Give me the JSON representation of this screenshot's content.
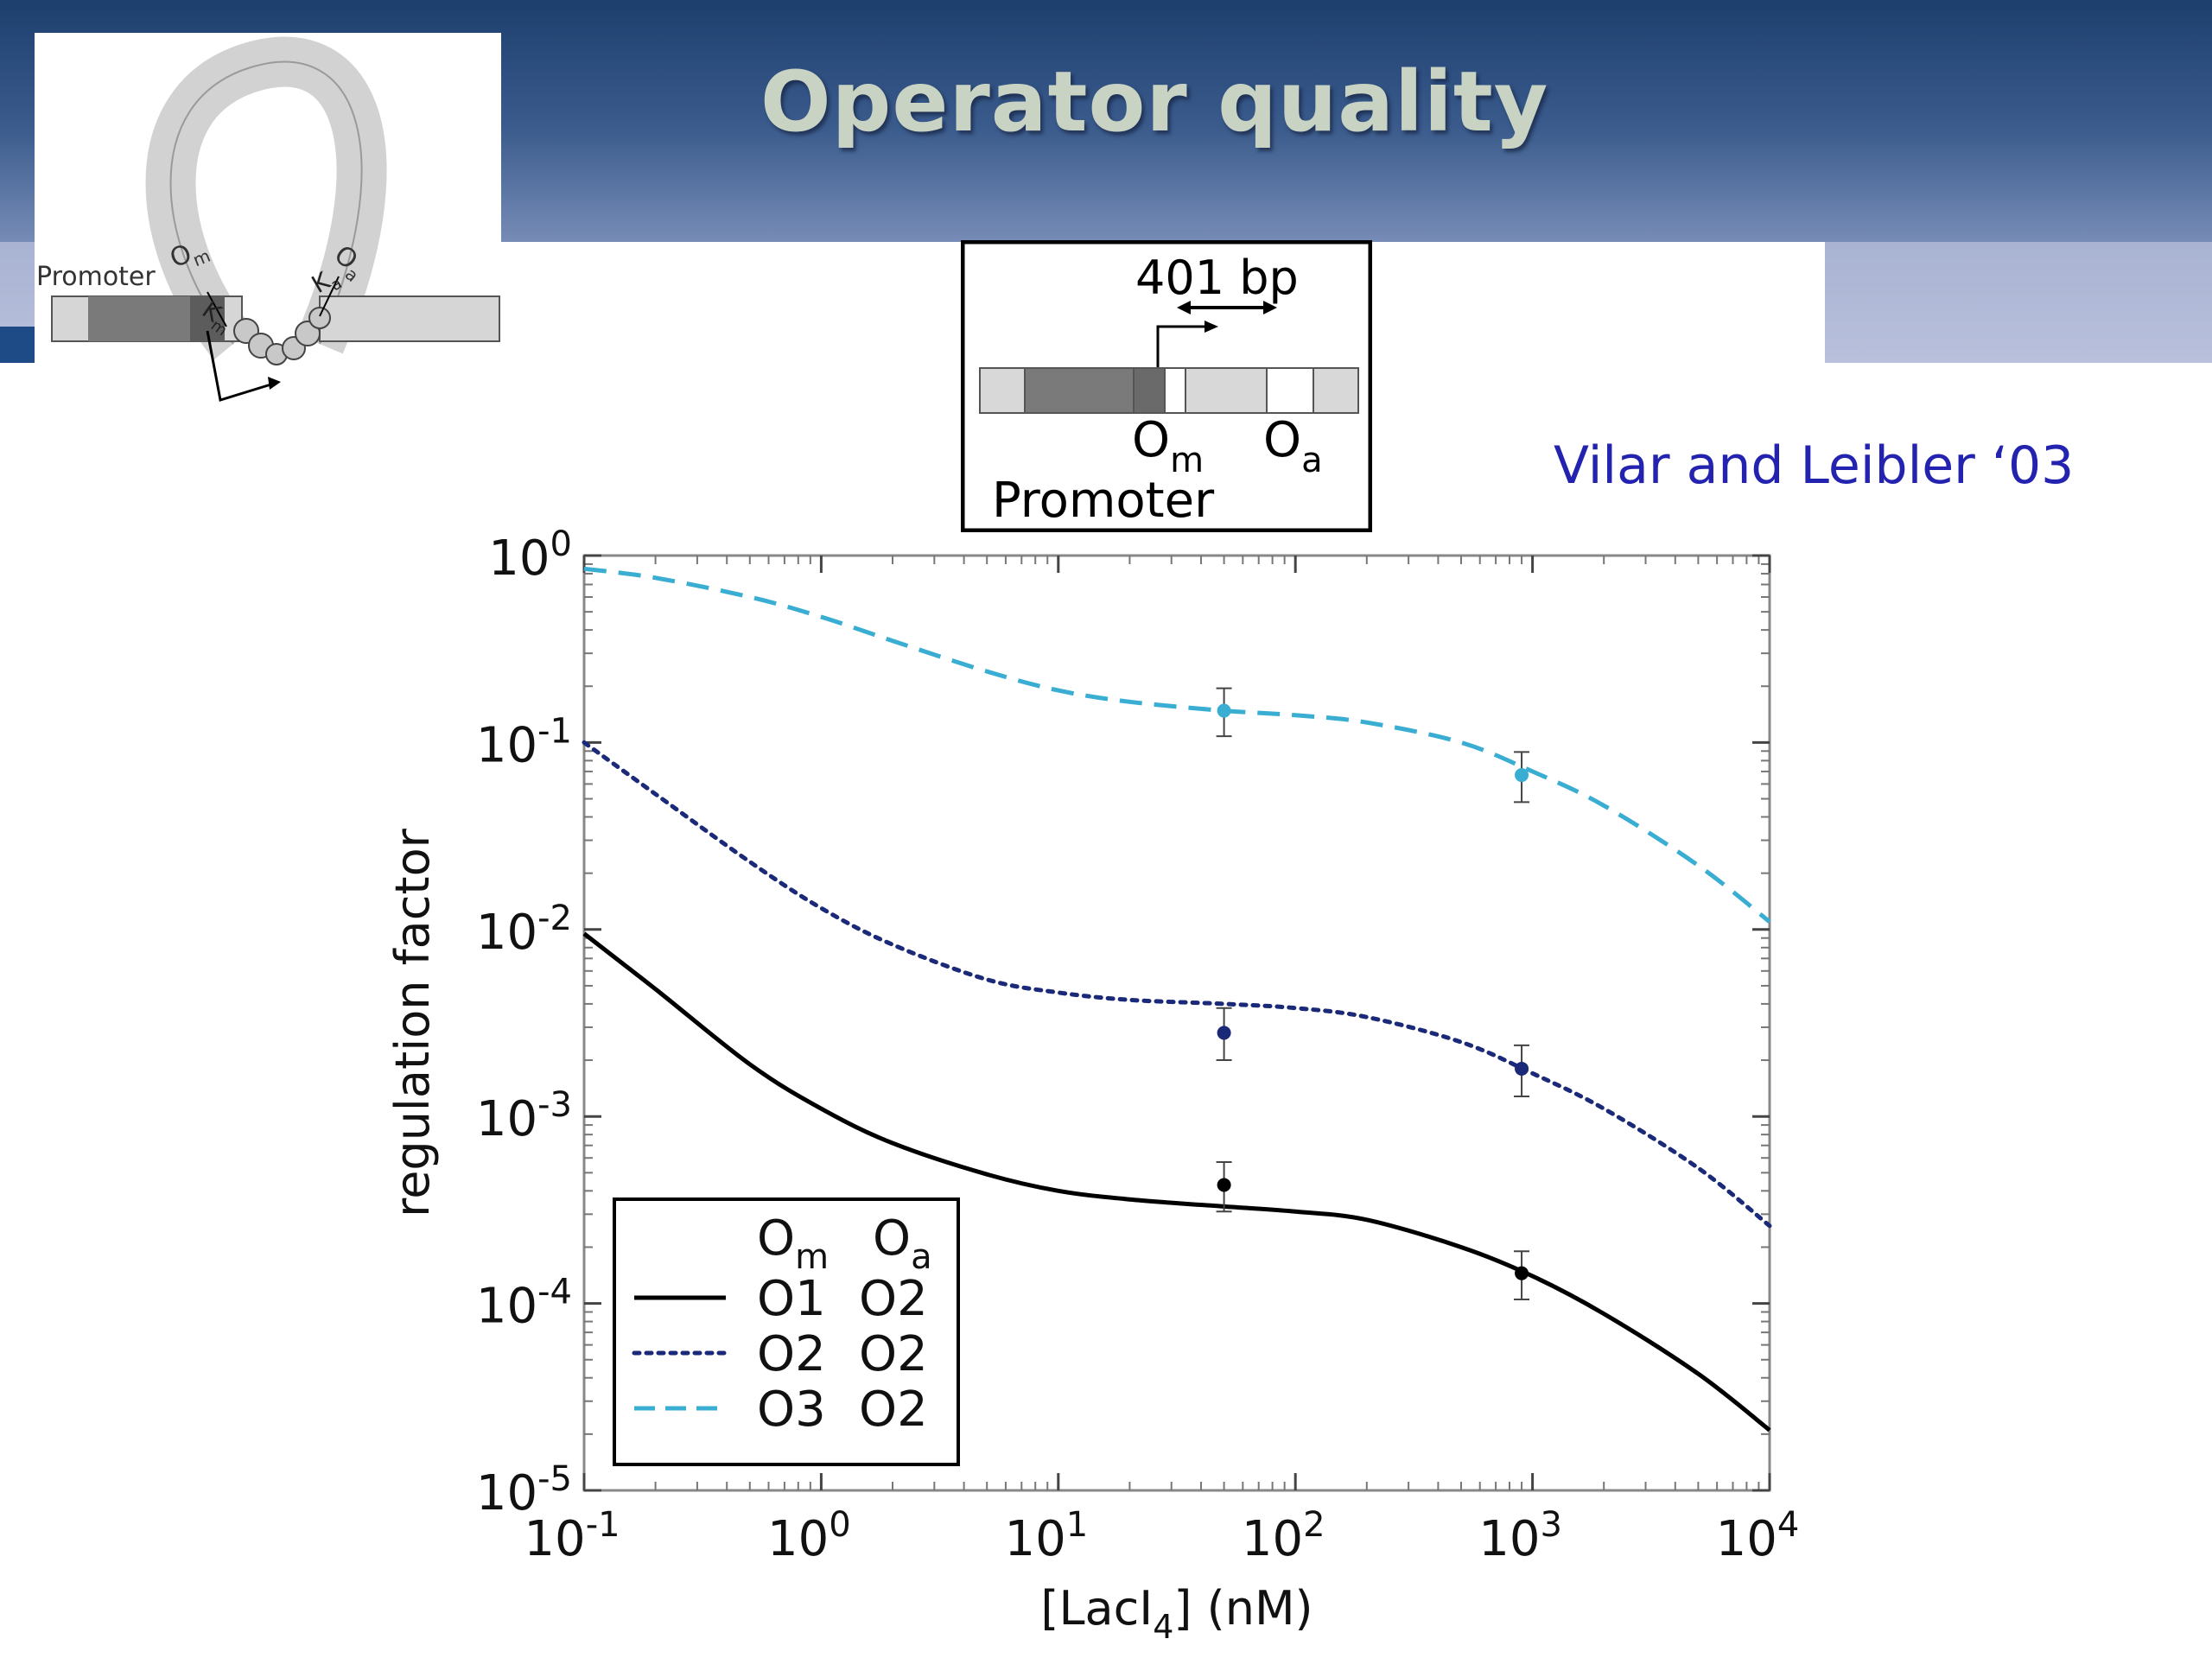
{
  "slide": {
    "title": "Operator quality",
    "credit": "Vilar and Leibler ‘03"
  },
  "loop_diagram": {
    "promoter_label": "Promoter",
    "om_label": "O",
    "om_sub": "m",
    "oa_label": "O",
    "oa_sub": "a",
    "km_label": "K",
    "km_sub": "m",
    "ka_label": "K",
    "ka_sub": "a"
  },
  "construct_diagram": {
    "distance_label": "401 bp",
    "om_label": "O",
    "om_sub": "m",
    "oa_label": "O",
    "oa_sub": "a",
    "promoter_label": "Promoter"
  },
  "colors": {
    "o1": "#000000",
    "o2": "#1b2a78",
    "o3": "#3aaed2"
  },
  "chart_data": {
    "type": "line",
    "xlabel": "[LacI",
    "xlabel_sub": "4",
    "xlabel_tail": "] (nM)",
    "ylabel": "regulation factor",
    "xscale": "log",
    "yscale": "log",
    "xlim": [
      0.1,
      10000
    ],
    "ylim": [
      1e-05,
      1
    ],
    "x_ticks": [
      {
        "base": "10",
        "exp": "-1"
      },
      {
        "base": "10",
        "exp": "0"
      },
      {
        "base": "10",
        "exp": "1"
      },
      {
        "base": "10",
        "exp": "2"
      },
      {
        "base": "10",
        "exp": "3"
      },
      {
        "base": "10",
        "exp": "4"
      }
    ],
    "y_ticks": [
      {
        "base": "10",
        "exp": "0"
      },
      {
        "base": "10",
        "exp": "-1"
      },
      {
        "base": "10",
        "exp": "-2"
      },
      {
        "base": "10",
        "exp": "-3"
      },
      {
        "base": "10",
        "exp": "-4"
      },
      {
        "base": "10",
        "exp": "-5"
      }
    ],
    "legend": {
      "placement": "bottom-left",
      "header_om": "O",
      "header_om_sub": "m",
      "header_oa": "O",
      "header_oa_sub": "a",
      "entries": [
        {
          "om": "O1",
          "oa": "O2",
          "style": "solid",
          "color": "#000000"
        },
        {
          "om": "O2",
          "oa": "O2",
          "style": "dotted",
          "color": "#1b2a78"
        },
        {
          "om": "O3",
          "oa": "O2",
          "style": "dashed",
          "color": "#3aaed2"
        }
      ]
    },
    "series": [
      {
        "style": "solid",
        "color": "#000000",
        "x": [
          0.1,
          0.2,
          0.5,
          1,
          2,
          5,
          10,
          20,
          50,
          100,
          200,
          500,
          1000,
          2000,
          5000,
          10000
        ],
        "y": [
          0.0095,
          0.0048,
          0.0019,
          0.0011,
          0.00072,
          0.00049,
          0.0004,
          0.00036,
          0.00033,
          0.00031,
          0.00028,
          0.0002,
          0.00014,
          8.8e-05,
          4.2e-05,
          2.1e-05
        ]
      },
      {
        "style": "dotted",
        "color": "#1b2a78",
        "x": [
          0.1,
          0.2,
          0.5,
          1,
          2,
          5,
          10,
          20,
          50,
          100,
          200,
          500,
          1000,
          2000,
          5000,
          10000
        ],
        "y": [
          0.1,
          0.053,
          0.023,
          0.013,
          0.0083,
          0.0054,
          0.0046,
          0.0042,
          0.004,
          0.0038,
          0.0034,
          0.0025,
          0.0017,
          0.0011,
          0.00053,
          0.00026
        ]
      },
      {
        "style": "dashed",
        "color": "#3aaed2",
        "x": [
          0.1,
          0.2,
          0.5,
          1,
          2,
          5,
          10,
          20,
          50,
          100,
          200,
          500,
          1000,
          2000,
          5000,
          10000
        ],
        "y": [
          0.85,
          0.76,
          0.6,
          0.47,
          0.35,
          0.24,
          0.19,
          0.165,
          0.148,
          0.14,
          0.128,
          0.1,
          0.07,
          0.046,
          0.022,
          0.011
        ]
      }
    ],
    "points": [
      {
        "x": 50,
        "y": 0.00043,
        "lo": 0.00031,
        "hi": 0.00057,
        "color": "#000000"
      },
      {
        "x": 900,
        "y": 0.000145,
        "lo": 0.000105,
        "hi": 0.00019,
        "color": "#000000"
      },
      {
        "x": 50,
        "y": 0.0028,
        "lo": 0.002,
        "hi": 0.0038,
        "color": "#1b2a78"
      },
      {
        "x": 900,
        "y": 0.0018,
        "lo": 0.00128,
        "hi": 0.0024,
        "color": "#1b2a78"
      },
      {
        "x": 50,
        "y": 0.148,
        "lo": 0.108,
        "hi": 0.195,
        "color": "#3aaed2"
      },
      {
        "x": 900,
        "y": 0.067,
        "lo": 0.048,
        "hi": 0.089,
        "color": "#3aaed2"
      }
    ]
  }
}
